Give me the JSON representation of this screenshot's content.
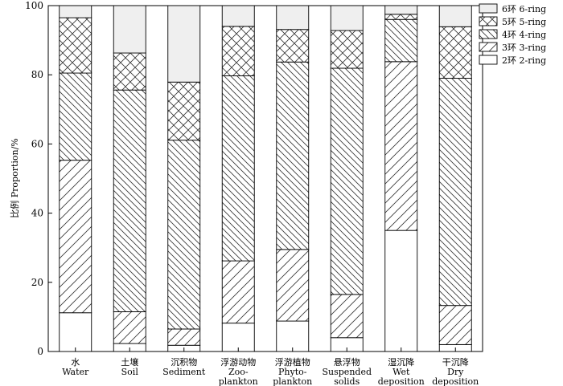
{
  "chart_data": {
    "type": "bar",
    "stacked": true,
    "ylabel": "比例 Proportion/%",
    "xlabel": "",
    "ylim": [
      0,
      100
    ],
    "yticks": [
      0,
      20,
      40,
      60,
      80,
      100
    ],
    "grid": false,
    "legend_position": "top-right",
    "categories": [
      {
        "zh": "水",
        "en": "Water",
        "en2": ""
      },
      {
        "zh": "土壤",
        "en": "Soil",
        "en2": ""
      },
      {
        "zh": "沉积物",
        "en": "Sediment",
        "en2": ""
      },
      {
        "zh": "浮游动物",
        "en": "Zoo-",
        "en2": "plankton"
      },
      {
        "zh": "浮游植物",
        "en": "Phyto-",
        "en2": "plankton"
      },
      {
        "zh": "悬浮物",
        "en": "Suspended",
        "en2": "solids"
      },
      {
        "zh": "湿沉降",
        "en": "Wet",
        "en2": "deposition"
      },
      {
        "zh": "干沉降",
        "en": "Dry",
        "en2": "deposition"
      }
    ],
    "series": [
      {
        "name": "2环 2-ring",
        "pattern": "blank",
        "values": [
          11.2,
          2.3,
          1.8,
          8.2,
          8.8,
          4.0,
          35.0,
          2.0
        ]
      },
      {
        "name": "3环 3-ring",
        "pattern": "hatch-up",
        "values": [
          44.1,
          9.2,
          4.7,
          18.0,
          20.7,
          12.5,
          48.8,
          11.3
        ]
      },
      {
        "name": "4环 4-ring",
        "pattern": "hatch-down",
        "values": [
          25.2,
          64.1,
          54.6,
          53.5,
          54.2,
          65.4,
          12.2,
          65.7
        ]
      },
      {
        "name": "5环 5-ring",
        "pattern": "crosshatch",
        "values": [
          16.0,
          10.7,
          16.8,
          14.3,
          9.4,
          10.9,
          1.5,
          14.9
        ]
      },
      {
        "name": "6环 6-ring",
        "pattern": "light-gray",
        "values": [
          3.5,
          13.7,
          22.1,
          6.0,
          6.9,
          7.2,
          2.5,
          6.1
        ]
      }
    ]
  }
}
